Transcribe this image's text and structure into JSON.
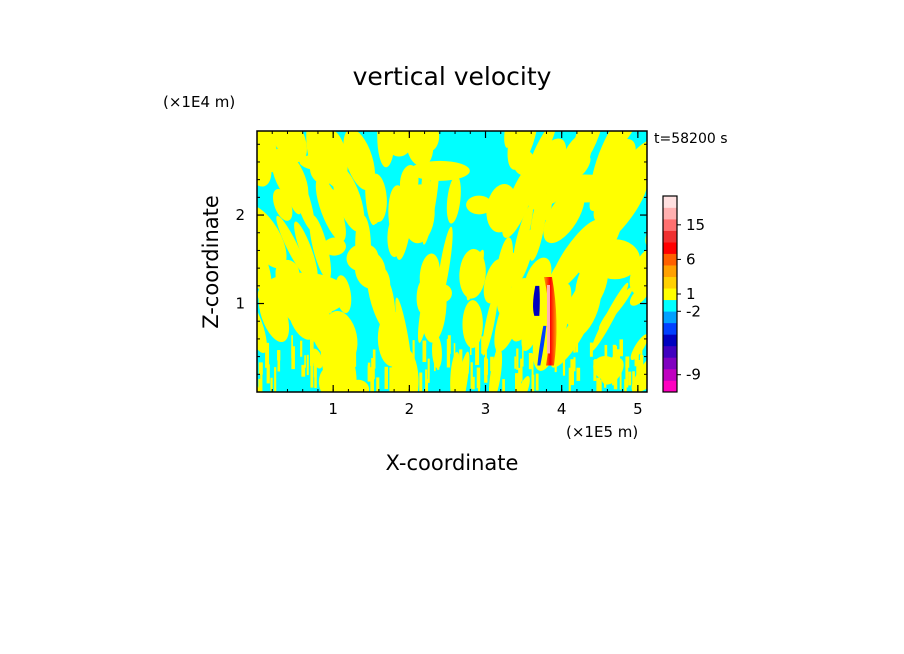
{
  "chart_data": {
    "type": "heatmap",
    "title": "vertical velocity",
    "xlabel": "X-coordinate",
    "ylabel": "Z-coordinate",
    "x_unit": "(×1E5 m)",
    "y_unit": "(×1E4 m)",
    "time_label": "t=58200 s",
    "xlim": [
      0,
      5.12
    ],
    "ylim": [
      0,
      2.95
    ],
    "x_ticks": [
      "1",
      "2",
      "3",
      "4",
      "5"
    ],
    "x_tick_values": [
      1,
      2,
      3,
      4,
      5
    ],
    "y_ticks": [
      "1",
      "2"
    ],
    "y_tick_values": [
      1,
      2
    ],
    "grid": false,
    "colorbar": {
      "labels": [
        "15",
        "6",
        "1",
        "-2",
        "-9"
      ],
      "label_values": [
        15,
        6,
        1,
        -2,
        -9
      ],
      "colors": [
        "#ff00c0",
        "#c000c0",
        "#8000c0",
        "#4000c0",
        "#0000c0",
        "#0040ff",
        "#00a0ff",
        "#00ffff",
        "#ffff00",
        "#ffd000",
        "#ffa000",
        "#ff6000",
        "#ff0000",
        "#f03030",
        "#ff7070",
        "#ffb0b0",
        "#ffe0e0"
      ],
      "colors_note": "bottom to top"
    },
    "field_description": "Background alternates between cyan (weak downward/near-zero) and yellow (weak upward) streaks; a narrow strong-updraft column near x≈3.8 (red/orange) flanked by a blue downdraft near x≈3.7, z from ~0.3 to 1.3",
    "background_colors": {
      "weak_negative": "#00ffff",
      "weak_positive": "#ffff00"
    },
    "updraft_core": {
      "x": 3.82,
      "z_range": [
        0.3,
        1.3
      ],
      "peak_value": 15
    },
    "downdraft_core": {
      "x": 3.68,
      "z_range": [
        0.3,
        1.2
      ],
      "peak_value": -9
    }
  }
}
